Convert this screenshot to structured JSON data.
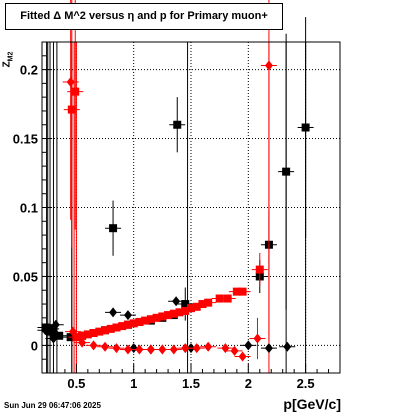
{
  "title": "Fitted Δ M^2 versus η and p for Primary muon+",
  "timestamp": "Sun Jun 29 06:47:06 2025",
  "colors": {
    "red": "#ff0000",
    "black": "#000000"
  },
  "chart_data": {
    "type": "scatter",
    "xlabel": "p[GeV/c]",
    "ylabel": "Z_{M2}",
    "xlim": [
      0.2,
      2.8
    ],
    "ylim": [
      -0.02,
      0.22
    ],
    "grid": true,
    "x_ticks": [
      {
        "value": 0.5,
        "label": "0.5"
      },
      {
        "value": 1.0,
        "label": "1"
      },
      {
        "value": 1.5,
        "label": "1.5"
      },
      {
        "value": 2.0,
        "label": "2"
      },
      {
        "value": 2.5,
        "label": "2.5"
      }
    ],
    "y_ticks": [
      {
        "value": 0.0,
        "label": "0"
      },
      {
        "value": 0.05,
        "label": "0.05"
      },
      {
        "value": 0.1,
        "label": "0.1"
      },
      {
        "value": 0.15,
        "label": "0.15"
      },
      {
        "value": 0.2,
        "label": "0.2"
      }
    ],
    "series": [
      {
        "marker": "square",
        "color": "#000000",
        "points": [
          {
            "x": 0.23,
            "y": 0.013
          },
          {
            "x": 0.27,
            "y": 0.01
          },
          {
            "x": 0.3,
            "y": 0.009
          },
          {
            "x": 0.35,
            "y": 0.007
          },
          {
            "x": 0.45,
            "y": 0.006
          },
          {
            "x": 0.55,
            "y": 0.007
          },
          {
            "x": 0.65,
            "y": 0.009
          },
          {
            "x": 0.75,
            "y": 0.011
          },
          {
            "x": 0.85,
            "y": 0.013
          },
          {
            "x": 0.95,
            "y": 0.015
          },
          {
            "x": 1.05,
            "y": 0.017
          },
          {
            "x": 1.15,
            "y": 0.018
          },
          {
            "x": 1.25,
            "y": 0.02
          },
          {
            "x": 1.35,
            "y": 0.022
          },
          {
            "x": 0.82,
            "y": 0.085,
            "err": 0.02
          },
          {
            "x": 1.38,
            "y": 0.16,
            "err": 0.02
          },
          {
            "x": 1.45,
            "y": 0.03,
            "err": 0.012
          },
          {
            "x": 2.1,
            "y": 0.05,
            "err": 0.012
          },
          {
            "x": 2.18,
            "y": 0.073,
            "err": 0.025
          },
          {
            "x": 2.33,
            "y": 0.126,
            "err": 0.1
          },
          {
            "x": 2.5,
            "y": 0.158,
            "err": 0.08
          }
        ]
      },
      {
        "marker": "diamond",
        "color": "#000000",
        "points": [
          {
            "x": 0.23,
            "y": 0.011
          },
          {
            "x": 0.28,
            "y": 0.012
          },
          {
            "x": 0.3,
            "y": 0.005
          },
          {
            "x": 0.32,
            "y": 0.015
          },
          {
            "x": 0.82,
            "y": 0.024
          },
          {
            "x": 0.95,
            "y": 0.022
          },
          {
            "x": 1.37,
            "y": 0.032
          },
          {
            "x": 1.0,
            "y": -0.002
          },
          {
            "x": 1.15,
            "y": -0.003
          },
          {
            "x": 1.5,
            "y": -0.002
          },
          {
            "x": 2.0,
            "y": 0.0
          },
          {
            "x": 2.18,
            "y": -0.002
          },
          {
            "x": 2.34,
            "y": -0.001
          }
        ]
      },
      {
        "marker": "square",
        "color": "#ff0000",
        "points": [
          {
            "x": 0.46,
            "y": 0.171,
            "err": 0.1
          },
          {
            "x": 0.49,
            "y": 0.184,
            "err": 0.1
          },
          {
            "x": 0.5,
            "y": 0.006
          },
          {
            "x": 0.55,
            "y": 0.007
          },
          {
            "x": 0.6,
            "y": 0.008
          },
          {
            "x": 0.65,
            "y": 0.009
          },
          {
            "x": 0.7,
            "y": 0.01
          },
          {
            "x": 0.75,
            "y": 0.011
          },
          {
            "x": 0.8,
            "y": 0.012
          },
          {
            "x": 0.85,
            "y": 0.013
          },
          {
            "x": 0.9,
            "y": 0.014
          },
          {
            "x": 0.95,
            "y": 0.015
          },
          {
            "x": 1.0,
            "y": 0.016
          },
          {
            "x": 1.05,
            "y": 0.017
          },
          {
            "x": 1.1,
            "y": 0.018
          },
          {
            "x": 1.15,
            "y": 0.019
          },
          {
            "x": 1.2,
            "y": 0.02
          },
          {
            "x": 1.25,
            "y": 0.021
          },
          {
            "x": 1.3,
            "y": 0.022
          },
          {
            "x": 1.35,
            "y": 0.023
          },
          {
            "x": 1.4,
            "y": 0.024
          },
          {
            "x": 1.45,
            "y": 0.025
          },
          {
            "x": 1.5,
            "y": 0.027
          },
          {
            "x": 1.55,
            "y": 0.028
          },
          {
            "x": 1.6,
            "y": 0.03
          },
          {
            "x": 1.65,
            "y": 0.031
          },
          {
            "x": 1.75,
            "y": 0.034
          },
          {
            "x": 1.82,
            "y": 0.034
          },
          {
            "x": 1.9,
            "y": 0.039
          },
          {
            "x": 1.95,
            "y": 0.039
          },
          {
            "x": 2.1,
            "y": 0.055,
            "err": 0.012
          }
        ]
      },
      {
        "marker": "diamond",
        "color": "#ff0000",
        "points": [
          {
            "x": 0.45,
            "y": 0.191,
            "err": 0.1
          },
          {
            "x": 0.47,
            "y": 0.01
          },
          {
            "x": 0.55,
            "y": 0.002
          },
          {
            "x": 0.65,
            "y": 0.0
          },
          {
            "x": 0.75,
            "y": -0.001
          },
          {
            "x": 0.85,
            "y": -0.002
          },
          {
            "x": 0.95,
            "y": -0.003
          },
          {
            "x": 1.05,
            "y": -0.003
          },
          {
            "x": 1.15,
            "y": -0.003
          },
          {
            "x": 1.25,
            "y": -0.003
          },
          {
            "x": 1.35,
            "y": -0.003
          },
          {
            "x": 1.45,
            "y": -0.002
          },
          {
            "x": 1.55,
            "y": -0.002
          },
          {
            "x": 1.65,
            "y": -0.001
          },
          {
            "x": 1.8,
            "y": -0.002
          },
          {
            "x": 1.88,
            "y": -0.004
          },
          {
            "x": 1.95,
            "y": -0.008
          },
          {
            "x": 2.08,
            "y": 0.005,
            "err": 0.015
          },
          {
            "x": 2.18,
            "y": 0.203,
            "err": 0.2
          }
        ]
      }
    ],
    "vertical_lines": [
      {
        "x": 0.24,
        "color": "#000000"
      },
      {
        "x": 0.25,
        "color": "#000000"
      },
      {
        "x": 0.27,
        "color": "#000000"
      },
      {
        "x": 0.3,
        "color": "#000000"
      },
      {
        "x": 0.33,
        "color": "#000000"
      },
      {
        "x": 0.46,
        "color": "#ff0000"
      },
      {
        "x": 0.48,
        "color": "#ff0000"
      },
      {
        "x": 0.5,
        "color": "#ff0000"
      },
      {
        "x": 0.46,
        "color": "#000000"
      },
      {
        "x": 1.47,
        "color": "#000000"
      },
      {
        "x": 2.18,
        "color": "#ff0000"
      },
      {
        "x": 2.33,
        "color": "#000000"
      },
      {
        "x": 2.5,
        "color": "#000000"
      }
    ]
  }
}
